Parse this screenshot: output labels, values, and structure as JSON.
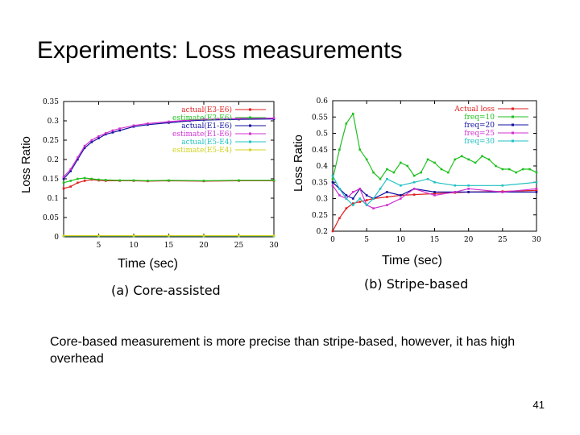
{
  "slide": {
    "title": "Experiments: Loss measurements",
    "caption_a": "(a) Core-assisted",
    "caption_b": "(b) Stripe-based",
    "body": "Core-based measurement is more precise than stripe-based, however, it has high overhead",
    "page_number": "41"
  },
  "chart_data": [
    {
      "type": "line",
      "xlabel": "Time (sec)",
      "ylabel": "Loss Ratio",
      "xlim": [
        0,
        30
      ],
      "ylim": [
        0,
        0.35
      ],
      "xticks": [
        5,
        10,
        15,
        20,
        25,
        30
      ],
      "yticks": [
        0,
        0.05,
        0.1,
        0.15,
        0.2,
        0.25,
        0.3,
        0.35
      ],
      "legend_position": "top-right",
      "series": [
        {
          "name": "actual(E3-E6)",
          "color": "#e02020",
          "x": [
            0,
            1,
            2,
            3,
            4,
            5,
            6,
            8,
            10,
            12,
            15,
            20,
            25,
            30
          ],
          "y": [
            0.125,
            0.13,
            0.14,
            0.145,
            0.148,
            0.146,
            0.145,
            0.145,
            0.145,
            0.144,
            0.145,
            0.144,
            0.145,
            0.145
          ]
        },
        {
          "name": "estimate(E3-E6)",
          "color": "#20c020",
          "x": [
            0,
            1,
            2,
            3,
            4,
            5,
            6,
            8,
            10,
            12,
            15,
            20,
            25,
            30
          ],
          "y": [
            0.14,
            0.145,
            0.15,
            0.152,
            0.15,
            0.148,
            0.147,
            0.146,
            0.146,
            0.145,
            0.146,
            0.145,
            0.146,
            0.146
          ]
        },
        {
          "name": "actual(E1-E6)",
          "color": "#1010a0",
          "x": [
            0,
            1,
            2,
            3,
            4,
            5,
            6,
            7,
            8,
            10,
            12,
            15,
            18,
            20,
            25,
            30
          ],
          "y": [
            0.15,
            0.17,
            0.2,
            0.23,
            0.245,
            0.255,
            0.265,
            0.27,
            0.275,
            0.285,
            0.29,
            0.295,
            0.3,
            0.302,
            0.304,
            0.305
          ]
        },
        {
          "name": "estimate(E1-E6)",
          "color": "#d030d0",
          "x": [
            0,
            1,
            2,
            3,
            4,
            5,
            6,
            7,
            8,
            10,
            12,
            15,
            18,
            20,
            25,
            30
          ],
          "y": [
            0.155,
            0.175,
            0.205,
            0.235,
            0.25,
            0.26,
            0.268,
            0.275,
            0.28,
            0.288,
            0.293,
            0.298,
            0.302,
            0.304,
            0.306,
            0.307
          ]
        },
        {
          "name": "actual(E5-E4)",
          "color": "#20c0c0",
          "x": [
            0,
            5,
            10,
            15,
            20,
            25,
            30
          ],
          "y": [
            0.002,
            0.002,
            0.002,
            0.002,
            0.002,
            0.002,
            0.002
          ]
        },
        {
          "name": "estimate(E5-E4)",
          "color": "#d0d020",
          "x": [
            0,
            5,
            10,
            15,
            20,
            25,
            30
          ],
          "y": [
            0.003,
            0.003,
            0.003,
            0.003,
            0.003,
            0.003,
            0.003
          ]
        }
      ]
    },
    {
      "type": "line",
      "xlabel": "Time (sec)",
      "ylabel": "Loss Ratio",
      "xlim": [
        0,
        30
      ],
      "ylim": [
        0.2,
        0.6
      ],
      "xticks": [
        0,
        5,
        10,
        15,
        20,
        25,
        30
      ],
      "yticks": [
        0.2,
        0.25,
        0.3,
        0.35,
        0.4,
        0.45,
        0.5,
        0.55,
        0.6
      ],
      "legend_position": "top-right",
      "series": [
        {
          "name": "Actual loss",
          "color": "#e02020",
          "x": [
            0,
            1,
            2,
            3,
            4,
            5,
            6,
            8,
            10,
            12,
            15,
            18,
            20,
            25,
            30
          ],
          "y": [
            0.2,
            0.24,
            0.27,
            0.285,
            0.29,
            0.295,
            0.3,
            0.305,
            0.31,
            0.312,
            0.315,
            0.318,
            0.32,
            0.322,
            0.325
          ]
        },
        {
          "name": "freq=10",
          "color": "#20c020",
          "x": [
            0,
            1,
            2,
            3,
            4,
            5,
            6,
            7,
            8,
            9,
            10,
            11,
            12,
            13,
            14,
            15,
            16,
            17,
            18,
            19,
            20,
            21,
            22,
            23,
            24,
            25,
            26,
            27,
            28,
            29,
            30
          ],
          "y": [
            0.36,
            0.45,
            0.53,
            0.56,
            0.45,
            0.42,
            0.38,
            0.36,
            0.39,
            0.38,
            0.41,
            0.4,
            0.37,
            0.38,
            0.42,
            0.41,
            0.39,
            0.38,
            0.42,
            0.43,
            0.42,
            0.41,
            0.43,
            0.42,
            0.4,
            0.39,
            0.39,
            0.38,
            0.39,
            0.39,
            0.38
          ]
        },
        {
          "name": "freq=20",
          "color": "#1010a0",
          "x": [
            0,
            1,
            2,
            3,
            4,
            5,
            6,
            8,
            10,
            12,
            15,
            18,
            20,
            25,
            30
          ],
          "y": [
            0.35,
            0.33,
            0.31,
            0.3,
            0.33,
            0.31,
            0.3,
            0.32,
            0.31,
            0.33,
            0.32,
            0.32,
            0.32,
            0.32,
            0.32
          ]
        },
        {
          "name": "freq=25",
          "color": "#d030d0",
          "x": [
            0,
            1,
            2,
            3,
            4,
            5,
            6,
            8,
            10,
            12,
            15,
            18,
            20,
            25,
            30
          ],
          "y": [
            0.34,
            0.31,
            0.3,
            0.32,
            0.33,
            0.28,
            0.27,
            0.28,
            0.3,
            0.33,
            0.31,
            0.32,
            0.33,
            0.32,
            0.33
          ]
        },
        {
          "name": "freq=30",
          "color": "#20c0c0",
          "x": [
            0,
            1,
            2,
            3,
            4,
            5,
            6,
            7,
            8,
            10,
            12,
            14,
            15,
            18,
            20,
            25,
            30
          ],
          "y": [
            0.37,
            0.33,
            0.3,
            0.28,
            0.3,
            0.28,
            0.3,
            0.33,
            0.36,
            0.34,
            0.35,
            0.36,
            0.35,
            0.34,
            0.34,
            0.34,
            0.35
          ]
        }
      ]
    }
  ]
}
